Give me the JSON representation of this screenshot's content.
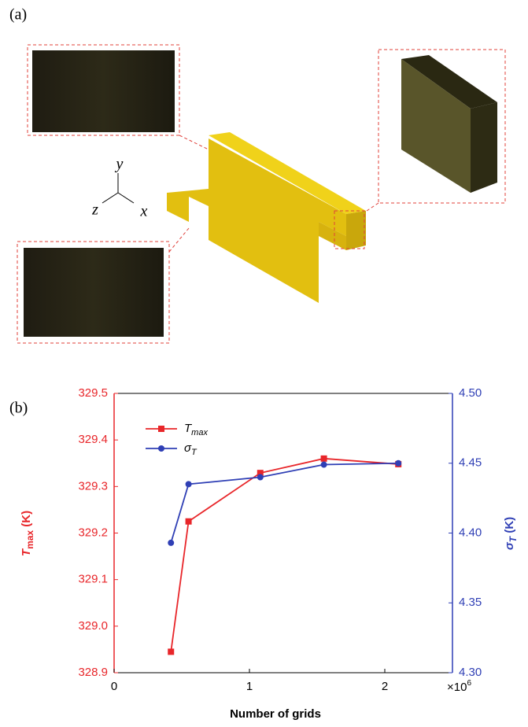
{
  "panel_a": {
    "label": "(a)",
    "axis_y": "y",
    "axis_z": "z",
    "axis_x": "x"
  },
  "chart_data": {
    "type": "line",
    "panel_label": "(b)",
    "xlabel": "Number of grids",
    "x_multiplier": {
      "base": "×10",
      "exp": "6"
    },
    "ylabel": {
      "text": "T",
      "sub": "max",
      "unit": " (K)"
    },
    "y2label": {
      "text": "σ",
      "sub": "T",
      "unit": " (K)"
    },
    "x": [
      0.42,
      0.55,
      1.08,
      1.55,
      2.1
    ],
    "xlim": [
      0,
      2.5
    ],
    "xticks": [
      0,
      1,
      2
    ],
    "ylim": [
      328.9,
      329.5
    ],
    "yticks": [
      328.9,
      {
        "value": 329,
        "label": "329.0"
      },
      329.1,
      329.2,
      329.3,
      329.4,
      329.5
    ],
    "y2lim": [
      4.3,
      4.5
    ],
    "y2ticks": [
      {
        "value": 4.3,
        "label": "4.30"
      },
      4.35,
      {
        "value": 4.4,
        "label": "4.40"
      },
      4.45,
      {
        "value": 4.5,
        "label": "4.50"
      }
    ],
    "series": [
      {
        "name": "T",
        "name_sub": "max",
        "color": "#e8262a",
        "marker": "square",
        "values": [
          328.945,
          329.225,
          329.329,
          329.36,
          329.348
        ]
      },
      {
        "name": "σ",
        "name_sub": "T",
        "color": "#2f3fb5",
        "marker": "circle",
        "axis": "y2",
        "values": [
          4.393,
          4.435,
          4.44,
          4.449,
          4.45
        ]
      }
    ]
  }
}
